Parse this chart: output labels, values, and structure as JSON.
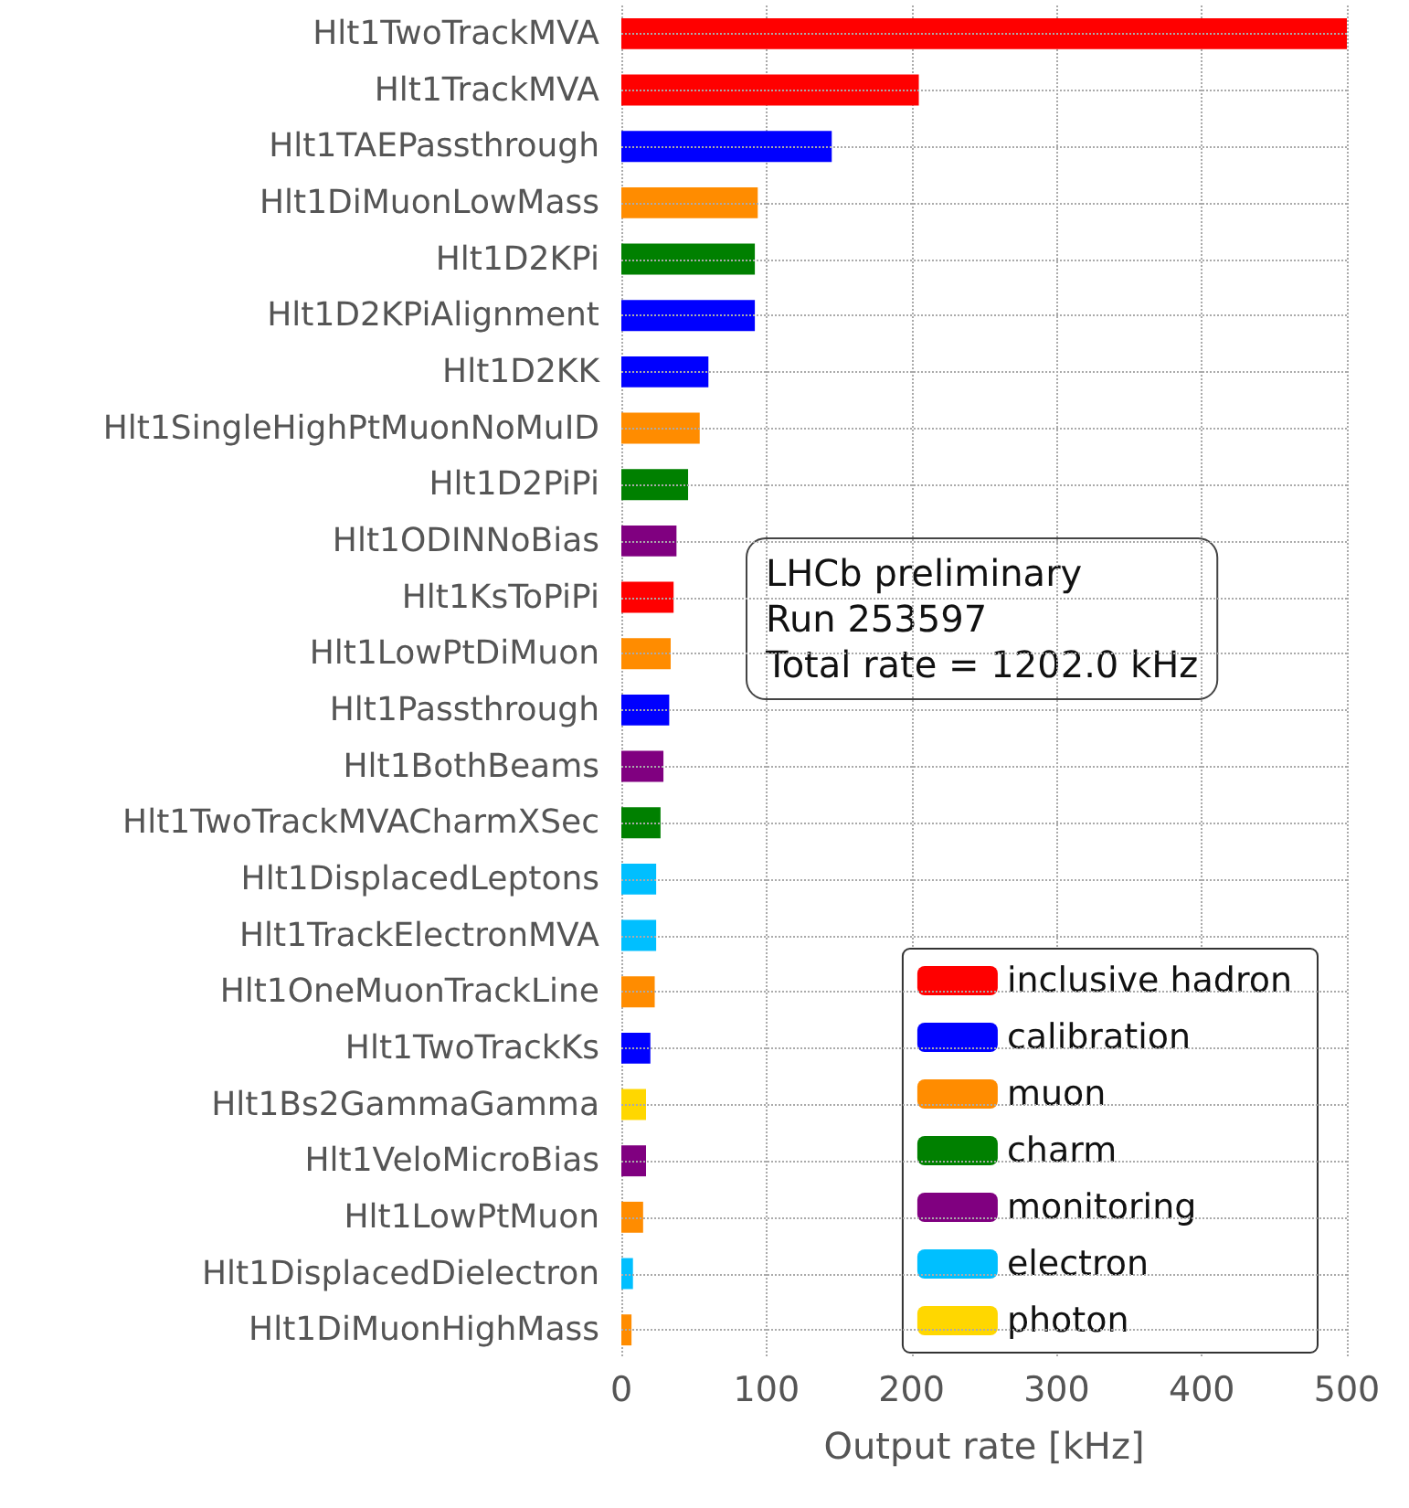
{
  "chart_data": {
    "type": "bar",
    "orientation": "horizontal",
    "xlabel": "Output rate [kHz]",
    "categories": [
      "Hlt1TwoTrackMVA",
      "Hlt1TrackMVA",
      "Hlt1TAEPassthrough",
      "Hlt1DiMuonLowMass",
      "Hlt1D2KPi",
      "Hlt1D2KPiAlignment",
      "Hlt1D2KK",
      "Hlt1SingleHighPtMuonNoMuID",
      "Hlt1D2PiPi",
      "Hlt1ODINNoBias",
      "Hlt1KsToPiPi",
      "Hlt1LowPtDiMuon",
      "Hlt1Passthrough",
      "Hlt1BothBeams",
      "Hlt1TwoTrackMVACharmXSec",
      "Hlt1DisplacedLeptons",
      "Hlt1TrackElectronMVA",
      "Hlt1OneMuonTrackLine",
      "Hlt1TwoTrackKs",
      "Hlt1Bs2GammaGamma",
      "Hlt1VeloMicroBias",
      "Hlt1LowPtMuon",
      "Hlt1DisplacedDielectron",
      "Hlt1DiMuonHighMass"
    ],
    "series": [
      {
        "name": "inclusive hadron",
        "color": "#ff0000",
        "values": [
          500,
          205,
          null,
          null,
          null,
          null,
          null,
          null,
          null,
          null,
          36,
          null,
          null,
          null,
          null,
          null,
          null,
          null,
          null,
          null,
          null,
          null,
          null,
          null
        ]
      },
      {
        "name": "calibration",
        "color": "#0000ff",
        "values": [
          null,
          null,
          145,
          null,
          null,
          92,
          60,
          null,
          null,
          null,
          null,
          null,
          33,
          null,
          null,
          null,
          null,
          null,
          20,
          null,
          null,
          null,
          null,
          null
        ]
      },
      {
        "name": "muon",
        "color": "#ff8c00",
        "values": [
          null,
          null,
          null,
          94,
          null,
          null,
          null,
          54,
          null,
          null,
          null,
          34,
          null,
          null,
          null,
          null,
          null,
          23,
          null,
          null,
          null,
          15,
          null,
          7
        ]
      },
      {
        "name": "charm",
        "color": "#008000",
        "values": [
          null,
          null,
          null,
          null,
          92,
          null,
          null,
          null,
          46,
          null,
          null,
          null,
          null,
          null,
          27,
          null,
          null,
          null,
          null,
          null,
          null,
          null,
          null,
          null
        ]
      },
      {
        "name": "monitoring",
        "color": "#800080",
        "values": [
          null,
          null,
          null,
          null,
          null,
          null,
          null,
          null,
          null,
          38,
          null,
          null,
          null,
          29,
          null,
          null,
          null,
          null,
          null,
          null,
          17,
          null,
          null,
          null
        ]
      },
      {
        "name": "electron",
        "color": "#00bfff",
        "values": [
          null,
          null,
          null,
          null,
          null,
          null,
          null,
          null,
          null,
          null,
          null,
          null,
          null,
          null,
          null,
          24,
          24,
          null,
          null,
          null,
          null,
          null,
          8,
          null
        ]
      },
      {
        "name": "photon",
        "color": "#ffd700",
        "values": [
          null,
          null,
          null,
          null,
          null,
          null,
          null,
          null,
          null,
          null,
          null,
          null,
          null,
          null,
          null,
          null,
          null,
          null,
          null,
          17,
          null,
          null,
          null,
          null
        ]
      }
    ],
    "xlim": [
      0,
      500
    ],
    "xticks": [
      0,
      100,
      200,
      300,
      400,
      500
    ],
    "grid": true,
    "legend": "bottom right",
    "annotations": [
      "LHCb preliminary\nRun 253597\nTotal rate = 1202.0 kHz"
    ]
  }
}
